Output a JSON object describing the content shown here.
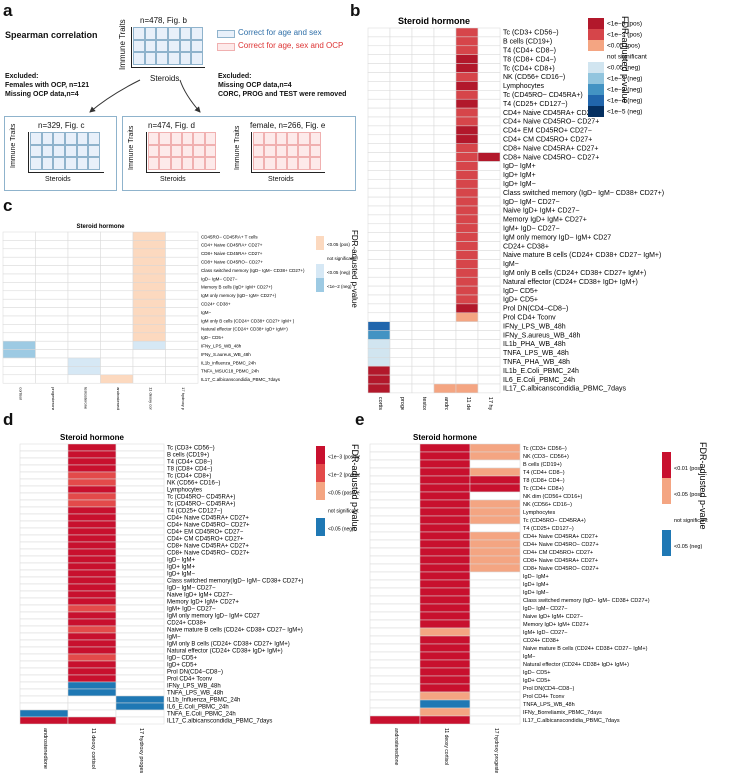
{
  "panel_labels": {
    "a": "a",
    "b": "b",
    "c": "c",
    "d": "d",
    "e": "e"
  },
  "schema": {
    "title": "Spearman correlation",
    "top_n": "n=478, Fig. b",
    "axis_y": "Immune Traits",
    "axis_x": "Steroids",
    "legend_blue": "Correct for age and sex",
    "legend_red": "Correct for age, sex and OCP",
    "excluded_left": [
      "Excluded:",
      "Females with OCP, n=121",
      "Missing OCP data,n=4"
    ],
    "excluded_right": [
      "Excluded:",
      "Missing OCP data,n=4",
      "CORC, PROG and TEST were removed"
    ],
    "box_c_n": "n=329, Fig. c",
    "box_d_n": "n=474, Fig. d",
    "box_e_n": "female, n=266, Fig. e",
    "colors": {
      "blue_border": "#8fb3cc",
      "blue_fill": "#e8f0fa",
      "red_fill": "#fdeaea",
      "red_border": "#f0b0b0"
    }
  },
  "panel_b": {
    "title": "Steroid hormone",
    "legend_title": "FDR-adjusted p-value",
    "legend": [
      {
        "label": "<1e−3 (pos)",
        "color": "#b2182b"
      },
      {
        "label": "<1e−2 (pos)",
        "color": "#d6454a"
      },
      {
        "label": "<0.05 (pos)",
        "color": "#f4a582"
      },
      {
        "label": "not significant",
        "color": "#ffffff"
      },
      {
        "label": "<0.05 (neg)",
        "color": "#d1e5f0"
      },
      {
        "label": "<1e−2 (neg)",
        "color": "#92c5de"
      },
      {
        "label": "<1e−3 (neg)",
        "color": "#4393c3"
      },
      {
        "label": "<1e−4 (neg)",
        "color": "#2166ac"
      },
      {
        "label": "<1e−5 (neg)",
        "color": "#053061"
      }
    ],
    "columns": [
      "cortisol",
      "progesterone",
      "testosterone",
      "androstenedione",
      "11 deoxy cortisol",
      "17 hydroxy progesterone"
    ],
    "rows": [
      "Tc (CD3+ CD56−)",
      "B cells (CD19+)",
      "T4 (CD4+ CD8−)",
      "T8 (CD8+ CD4−)",
      "Tc (CD4+ CD8+)",
      "NK (CD56+ CD16−)",
      "Lymphocytes",
      "Tc (CD45RO− CD45RA+)",
      "T4 (CD25+ CD127−)",
      "CD4+ Naive CD45RA+ CD27+",
      "CD4+ Naive CD45RO− CD27+",
      "CD4+ EM CD45RO+ CD27−",
      "CD4+ CM CD45RO+ CD27+",
      "CD8+ Naive CD45RA+ CD27+",
      "CD8+ Naive CD45RO− CD27+",
      "IgD− IgM+",
      "IgD+ IgM+",
      "IgD+ IgM−",
      "Class switched memory (IgD− IgM− CD38+ CD27+)",
      "IgD− IgM− CD27−",
      "Naive IgD+ IgM+ CD27−",
      "Memory IgD+ IgM+ CD27+",
      "IgM+ IgD− CD27−",
      "IgM only memory IgD− IgM+ CD27",
      "CD24+ CD38+",
      "Naive mature B cells (CD24+ CD38+ CD27− IgM+)",
      "IgM−",
      "IgM only B cells (CD24+ CD38+ CD27+ IgM+)",
      "Natural effector (CD24+ CD38+ IgD+ IgM+)",
      "IgD− CD5+",
      "IgD+ CD5+",
      "Prol DN(CD4−CD8−)",
      "Prol CD4+ Tconv",
      "IFNy_LPS_WB_48h",
      "IFNy_S.aureus_WB_48h",
      "IL1b_PHA_WB_48h",
      "TNFA_LPS_WB_48h",
      "TNFA_PHA_WB_48h",
      "IL1b_E.Coli_PBMC_24h",
      "IL6_E.Coli_PBMC_24h",
      "IL17_C.albicanscondidia_PBMC_7days"
    ],
    "cells": [
      [
        0,
        0,
        0,
        0,
        2,
        0
      ],
      [
        0,
        0,
        0,
        0,
        2,
        0
      ],
      [
        0,
        0,
        0,
        0,
        2,
        0
      ],
      [
        0,
        0,
        0,
        0,
        3,
        0
      ],
      [
        0,
        0,
        0,
        0,
        3,
        0
      ],
      [
        0,
        0,
        0,
        0,
        2,
        0
      ],
      [
        0,
        0,
        0,
        0,
        3,
        0
      ],
      [
        0,
        0,
        0,
        0,
        2,
        0
      ],
      [
        0,
        0,
        0,
        0,
        3,
        0
      ],
      [
        0,
        0,
        0,
        0,
        2,
        0
      ],
      [
        0,
        0,
        0,
        0,
        2,
        0
      ],
      [
        0,
        0,
        0,
        0,
        3,
        0
      ],
      [
        0,
        0,
        0,
        0,
        3,
        0
      ],
      [
        0,
        0,
        0,
        0,
        2,
        0
      ],
      [
        0,
        0,
        0,
        0,
        2,
        3
      ],
      [
        0,
        0,
        0,
        0,
        2,
        0
      ],
      [
        0,
        0,
        0,
        0,
        2,
        0
      ],
      [
        0,
        0,
        0,
        0,
        2,
        0
      ],
      [
        0,
        0,
        0,
        0,
        2,
        0
      ],
      [
        0,
        0,
        0,
        0,
        2,
        0
      ],
      [
        0,
        0,
        0,
        0,
        2,
        0
      ],
      [
        0,
        0,
        0,
        0,
        2,
        0
      ],
      [
        0,
        0,
        0,
        0,
        2,
        0
      ],
      [
        0,
        0,
        0,
        0,
        2,
        0
      ],
      [
        0,
        0,
        0,
        0,
        2,
        0
      ],
      [
        0,
        0,
        0,
        0,
        2,
        0
      ],
      [
        0,
        0,
        0,
        0,
        2,
        0
      ],
      [
        0,
        0,
        0,
        0,
        2,
        0
      ],
      [
        0,
        0,
        0,
        0,
        2,
        0
      ],
      [
        0,
        0,
        0,
        0,
        2,
        0
      ],
      [
        0,
        0,
        0,
        0,
        2,
        0
      ],
      [
        0,
        0,
        0,
        0,
        3,
        0
      ],
      [
        0,
        0,
        0,
        0,
        1,
        0
      ],
      [
        8,
        0,
        0,
        0,
        0,
        0
      ],
      [
        6,
        0,
        0,
        0,
        0,
        0
      ],
      [
        4,
        0,
        0,
        0,
        0,
        0
      ],
      [
        4,
        0,
        0,
        0,
        0,
        0
      ],
      [
        4,
        0,
        0,
        0,
        0,
        0
      ],
      [
        3,
        0,
        0,
        0,
        0,
        0
      ],
      [
        3,
        0,
        0,
        0,
        0,
        0
      ],
      [
        3,
        0,
        0,
        1,
        1,
        0
      ]
    ]
  },
  "panel_c": {
    "title": "Steroid hormone",
    "legend_title": "FDR-adjusted p-value",
    "legend": [
      {
        "label": "<0.05 (pos)",
        "color": "#fcd9bf"
      },
      {
        "label": "not significant",
        "color": "#ffffff"
      },
      {
        "label": "<0.05 (neg)",
        "color": "#d6e8f5"
      },
      {
        "label": "<1e−2 (neg)",
        "color": "#9dcae3"
      }
    ],
    "columns": [
      "cortisol",
      "progesterone",
      "testosterone",
      "androstenedione",
      "11 deoxy cortisol",
      "17 hydroxy progesterone"
    ],
    "rows": [
      "CD45RO− CD45RA+ T cells",
      "CD4+ Naive CD45RA+ CD27+",
      "CD8+ Naive CD45RA+ CD27+",
      "CD8+ Naive CD45RO− CD27+",
      "Class switched memory (IgD− IgM− CD38+ CD27+)",
      "IgD− IgM− CD27−",
      "Memory B cells (IgD+ IgM+ CD27+)",
      "IgM only memory (IgD− IgM+ CD27+)",
      "CD24+ CD38+",
      "IgM−",
      "IgM only B cells (CD24+ CD38+ CD27+ IgM+ )",
      "Natural effector (CD24+ CD38+ IgD+ IgM+)",
      "IgD− CD5+",
      "IFNy_LPS_WB_48h",
      "IFNy_S.aureus_WB_48h",
      "IL1b_influenza_PBMC_24h",
      "TNFA_MSUC18_PBMC_24h",
      "IL17_C.albicanscondidia_PBMC_7days"
    ],
    "cells": [
      [
        0,
        0,
        0,
        0,
        1,
        0
      ],
      [
        0,
        0,
        0,
        0,
        1,
        0
      ],
      [
        0,
        0,
        0,
        0,
        1,
        0
      ],
      [
        0,
        0,
        0,
        0,
        1,
        0
      ],
      [
        0,
        0,
        0,
        0,
        1,
        0
      ],
      [
        0,
        0,
        0,
        0,
        1,
        0
      ],
      [
        0,
        0,
        0,
        0,
        1,
        0
      ],
      [
        0,
        0,
        0,
        0,
        1,
        0
      ],
      [
        0,
        0,
        0,
        0,
        1,
        0
      ],
      [
        0,
        0,
        0,
        0,
        1,
        0
      ],
      [
        0,
        0,
        0,
        0,
        1,
        0
      ],
      [
        0,
        0,
        0,
        0,
        1,
        0
      ],
      [
        0,
        0,
        0,
        0,
        1,
        0
      ],
      [
        3,
        0,
        0,
        0,
        2,
        0
      ],
      [
        3,
        0,
        0,
        0,
        0,
        0
      ],
      [
        0,
        0,
        2,
        0,
        0,
        0
      ],
      [
        0,
        0,
        2,
        0,
        0,
        0
      ],
      [
        0,
        0,
        0,
        1,
        0,
        0
      ]
    ]
  },
  "panel_d": {
    "title": "Steroid hormone",
    "legend_title": "FDR-adjusted p-value",
    "legend": [
      {
        "label": "<1e−3 (postive)",
        "color": "#c8102e"
      },
      {
        "label": "<1e−2 (postive)",
        "color": "#e34a4a"
      },
      {
        "label": "<0.05 (postive)",
        "color": "#f4a582"
      },
      {
        "label": "not significant",
        "color": "#ffffff"
      },
      {
        "label": "<0.05 (neg)",
        "color": "#1f78b4"
      }
    ],
    "columns": [
      "androstenedione",
      "11 deoxy cortisol",
      "17 hydroxy progesterone"
    ],
    "rows": [
      "Tc (CD3+ CD56−)",
      "B cells (CD19+)",
      "T4 (CD4+ CD8−)",
      "T8 (CD8+ CD4−)",
      "Tc (CD4+ CD8+)",
      "NK (CD56+ CD16−)",
      "Lymphocytes",
      "Tc (CD45RO− CD45RA+)",
      "Tc (CD45RO− CD45RA+)",
      "T4 (CD25+ CD127−)",
      "CD4+ Naive CD45RA+ CD27+",
      "CD4+ Naive CD45RO− CD27+",
      "CD4+ EM CD45RO+ CD27−",
      "CD4+ CM CD45RO+ CD27+",
      "CD8+ Naive CD45RA+ CD27+",
      "CD8+ Naive CD45RO− CD27+",
      "IgD− IgM+",
      "IgD+ IgM+",
      "IgD+ IgM−",
      "Class switched memory(IgD− IgM− CD38+ CD27+)",
      "IgD− IgM− CD27−",
      "Naive IgD+ IgM+ CD27−",
      "Memory IgD+ IgM+ CD27+",
      "IgM+ IgD− CD27−",
      "IgM only memory IgD− IgM+ CD27",
      "CD24+ CD38+",
      "Naive mature B cells (CD24+ CD38+ CD27− IgM+)",
      "IgM−",
      "IgM only B cells (CD24+ CD38+ CD27+ IgM+)",
      "Natural effector (CD24+ CD38+ IgD+ IgM+)",
      "IgD− CD5+",
      "IgD+ CD5+",
      "Prol DN(CD4−CD8−)",
      "Prol CD4+ Tconv",
      "IFNy_LPS_WB_48h",
      "TNFA_LPS_WB_48h",
      "IL1b_Influenza_PBMC_24h",
      "IL6_E.Coli_PBMC_24h",
      "TNFA_E.Coli_PBMC_24h",
      "IL17_C.albicanscondidia_PBMC_7days"
    ],
    "cells": [
      [
        0,
        3,
        0
      ],
      [
        0,
        3,
        0
      ],
      [
        0,
        3,
        0
      ],
      [
        0,
        3,
        0
      ],
      [
        0,
        2,
        0
      ],
      [
        0,
        2,
        0
      ],
      [
        0,
        3,
        0
      ],
      [
        0,
        2,
        0
      ],
      [
        0,
        2,
        0
      ],
      [
        0,
        3,
        0
      ],
      [
        0,
        3,
        0
      ],
      [
        0,
        3,
        0
      ],
      [
        0,
        3,
        0
      ],
      [
        0,
        3,
        0
      ],
      [
        0,
        3,
        0
      ],
      [
        0,
        3,
        0
      ],
      [
        0,
        3,
        0
      ],
      [
        0,
        3,
        0
      ],
      [
        0,
        3,
        0
      ],
      [
        0,
        3,
        0
      ],
      [
        0,
        3,
        0
      ],
      [
        0,
        3,
        0
      ],
      [
        0,
        3,
        0
      ],
      [
        0,
        2,
        0
      ],
      [
        0,
        3,
        0
      ],
      [
        0,
        3,
        0
      ],
      [
        0,
        2,
        0
      ],
      [
        0,
        3,
        0
      ],
      [
        0,
        3,
        0
      ],
      [
        0,
        3,
        0
      ],
      [
        0,
        2,
        0
      ],
      [
        0,
        3,
        0
      ],
      [
        0,
        3,
        0
      ],
      [
        0,
        3,
        0
      ],
      [
        0,
        4,
        0
      ],
      [
        0,
        4,
        0
      ],
      [
        0,
        0,
        4
      ],
      [
        0,
        0,
        4
      ],
      [
        4,
        0,
        0
      ],
      [
        3,
        3,
        0
      ]
    ]
  },
  "panel_e": {
    "title": "Steroid hormone",
    "legend_title": "FDR-adjusted p-value",
    "legend": [
      {
        "label": "<0.01 (pos)",
        "color": "#c8102e"
      },
      {
        "label": "<0.05 (pos)",
        "color": "#f4a582"
      },
      {
        "label": "not significant",
        "color": "#ffffff"
      },
      {
        "label": "<0.05 (neg)",
        "color": "#1f78b4"
      }
    ],
    "columns": [
      "androstenedione",
      "11 deoxy cortisol",
      "17 hydroxy progesterone"
    ],
    "rows": [
      "Tc (CD3+ CD56−)",
      "NK (CD3− CD56+)",
      "B cells (CD19+)",
      "T4 (CD4+ CD8−)",
      "T8 (CD8+ CD4−)",
      "Tc (CD4+ CD8+)",
      "NK dim (CD56+ CD16+)",
      "NK (CD56+ CD16−)",
      "Lymphocytes",
      "Tc (CD45RO− CD45RA+)",
      "T4 (CD25+ CD127−)",
      "CD4+ Naive CD45RA+ CD27+",
      "CD4+ Naive CD45RO− CD27+",
      "CD4+ CM CD45RO+ CD27+",
      "CD8+ Naive CD45RA+ CD27+",
      "CD8+ Naive CD45RO− CD27+",
      "IgD− IgM+",
      "IgD+ IgM+",
      "IgD+ IgM−",
      "Class switched memory (IgD− IgM− CD38+ CD27+)",
      "IgD− IgM− CD27−",
      "Naive IgD+ IgM+ CD27−",
      "Memory IgD+ IgM+ CD27+",
      "IgM+ IgD− CD27−",
      "CD24+ CD38+",
      "Naive mature B cells (CD24+ CD38+ CD27− IgM+)",
      "IgM−",
      "Natural effector (CD24+ CD38+ IgD+ IgM+)",
      "IgD− CD5+",
      "IgD+ CD5+",
      "Prol DN(CD4−CD8−)",
      "Prol CD4+ Tconv",
      "TNFA_LPS_WB_48h",
      "IFNy_Borreliamix_PBMC_7days",
      "IL17_C.albicanscondidia_PBMC_7days"
    ],
    "cells": [
      [
        0,
        2,
        1
      ],
      [
        0,
        2,
        1
      ],
      [
        0,
        2,
        0
      ],
      [
        0,
        2,
        1
      ],
      [
        0,
        2,
        2
      ],
      [
        0,
        2,
        2
      ],
      [
        0,
        2,
        0
      ],
      [
        0,
        2,
        1
      ],
      [
        0,
        2,
        1
      ],
      [
        0,
        2,
        1
      ],
      [
        0,
        2,
        0
      ],
      [
        0,
        2,
        1
      ],
      [
        0,
        2,
        1
      ],
      [
        0,
        2,
        1
      ],
      [
        0,
        2,
        1
      ],
      [
        0,
        2,
        1
      ],
      [
        0,
        2,
        0
      ],
      [
        0,
        2,
        0
      ],
      [
        0,
        2,
        0
      ],
      [
        0,
        2,
        0
      ],
      [
        0,
        2,
        0
      ],
      [
        0,
        2,
        0
      ],
      [
        0,
        2,
        0
      ],
      [
        0,
        1,
        0
      ],
      [
        0,
        2,
        0
      ],
      [
        0,
        2,
        0
      ],
      [
        0,
        2,
        0
      ],
      [
        0,
        2,
        0
      ],
      [
        0,
        2,
        0
      ],
      [
        0,
        2,
        0
      ],
      [
        0,
        2,
        0
      ],
      [
        0,
        1,
        0
      ],
      [
        0,
        3,
        0
      ],
      [
        0,
        1,
        0
      ],
      [
        2,
        2,
        0
      ]
    ]
  }
}
